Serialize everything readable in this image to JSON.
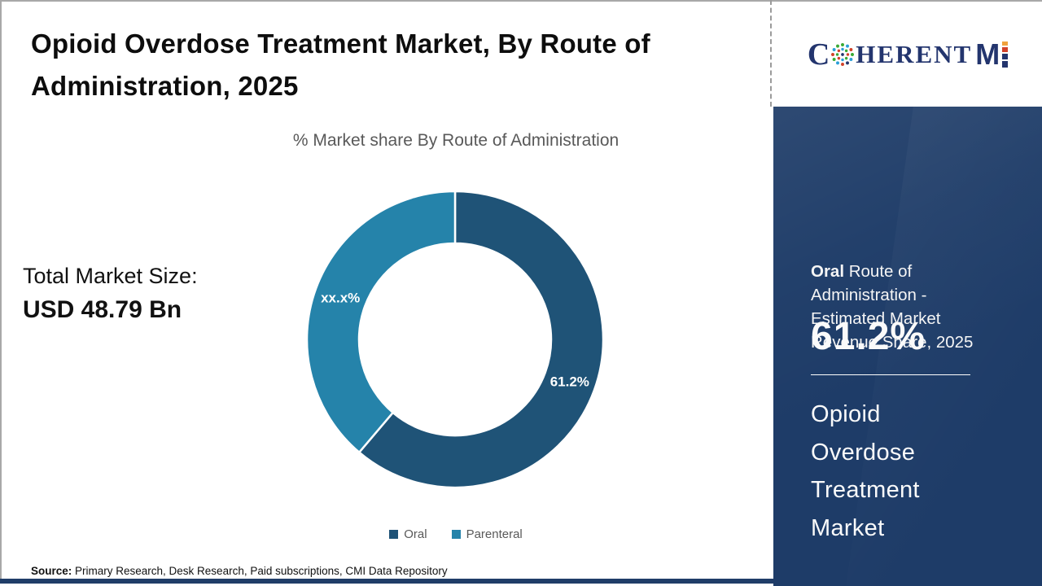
{
  "header": {
    "title": "Opioid Overdose Treatment Market, By Route of\nAdministration, 2025"
  },
  "logo": {
    "name": "CoherentMI",
    "part_c": "C",
    "part_rest": "HERENT",
    "part_m": "M",
    "navy": "#23356e",
    "orange": "#f0a23c",
    "red": "#d2422a",
    "green": "#3aaa35",
    "blue": "#2a9fd8"
  },
  "chart_data": {
    "type": "pie",
    "donut": true,
    "title": "% Market share By Route of Administration",
    "categories": [
      "Oral",
      "Parenteral"
    ],
    "values": [
      61.2,
      38.8
    ],
    "labels": [
      "61.2%",
      "xx.x%"
    ],
    "colors": [
      "#1f5377",
      "#2583aa"
    ],
    "start_angle_deg": 0,
    "clockwise": true,
    "inner_radius_ratio": 0.65,
    "legend_position": "bottom",
    "label_color": "#ffffff"
  },
  "stats": {
    "total_label": "Total Market Size:",
    "total_value": "USD 48.79 Bn"
  },
  "source": {
    "prefix": "Source:",
    "text": " Primary Research, Desk Research, Paid subscriptions, CMI Data Repository"
  },
  "sidebar": {
    "bg_color": "#1e3c68",
    "stat_value": "61.2%",
    "stat_desc_bold": "Oral",
    "stat_desc_rest": " Route of Administration - Estimated Market Revenue Share, 2025",
    "market_name": "Opioid\nOverdose\nTreatment\nMarket"
  }
}
